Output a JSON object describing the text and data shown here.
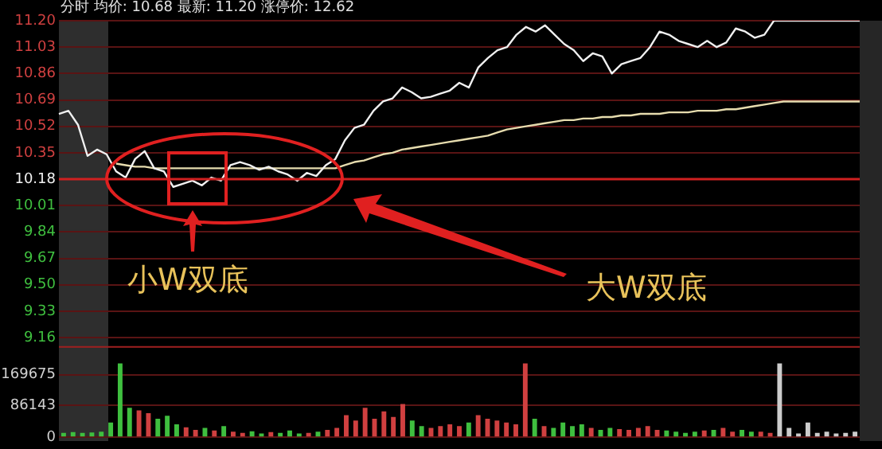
{
  "chart_data": [
    {
      "type": "line",
      "title": "分时 均价: 10.68 最新: 11.20 涨停价: 12.62",
      "categories": [
        null,
        null,
        null,
        null,
        null,
        null,
        null,
        null,
        null,
        null,
        null,
        null,
        null,
        null,
        null,
        null,
        null,
        null,
        null,
        null,
        null,
        null,
        null,
        null,
        null,
        null,
        null,
        null,
        null,
        null,
        null,
        null,
        null,
        null,
        null,
        null,
        null,
        null,
        null,
        null,
        null,
        null,
        null,
        null,
        null,
        null,
        null,
        null,
        null,
        null,
        null,
        null,
        null,
        null,
        null,
        null,
        null,
        null,
        null,
        null,
        null,
        null,
        null,
        null,
        null,
        null,
        null,
        null,
        null,
        null,
        null,
        null,
        null,
        null,
        null,
        null,
        null,
        null,
        null,
        null,
        null,
        null,
        null,
        null,
        null
      ],
      "series": [
        {
          "color": "#f0f0f0",
          "values": [
            10.6,
            10.62,
            10.53,
            10.33,
            10.37,
            10.34,
            10.23,
            10.19,
            10.31,
            10.36,
            10.25,
            10.23,
            10.13,
            10.15,
            10.17,
            10.14,
            10.19,
            10.17,
            10.27,
            10.29,
            10.27,
            10.24,
            10.26,
            10.23,
            10.21,
            10.17,
            10.22,
            10.2,
            10.27,
            10.31,
            10.43,
            10.51,
            10.53,
            10.62,
            10.68,
            10.7,
            10.77,
            10.74,
            10.7,
            10.71,
            10.73,
            10.75,
            10.8,
            10.77,
            10.9,
            10.96,
            11.01,
            11.03,
            11.11,
            11.16,
            11.13,
            11.17,
            11.11,
            11.05,
            11.01,
            10.94,
            10.99,
            10.97,
            10.86,
            10.92,
            10.94,
            10.96,
            11.03,
            11.13,
            11.11,
            11.07,
            11.05,
            11.03,
            11.07,
            11.03,
            11.06,
            11.15,
            11.13,
            11.09,
            11.11,
            11.2,
            11.2,
            11.2,
            11.2,
            11.2,
            11.2,
            11.2,
            11.2,
            11.2,
            11.2
          ]
        },
        {
          "color": "#e6dcae",
          "values": [
            null,
            null,
            null,
            null,
            null,
            null,
            10.28,
            10.27,
            10.26,
            10.26,
            10.25,
            10.25,
            10.25,
            10.25,
            10.25,
            10.25,
            10.25,
            10.25,
            10.25,
            10.25,
            10.25,
            10.25,
            10.25,
            10.25,
            10.25,
            10.25,
            10.25,
            10.25,
            10.25,
            10.25,
            10.27,
            10.29,
            10.3,
            10.32,
            10.34,
            10.35,
            10.37,
            10.38,
            10.39,
            10.4,
            10.41,
            10.42,
            10.43,
            10.44,
            10.45,
            10.46,
            10.48,
            10.5,
            10.51,
            10.52,
            10.53,
            10.54,
            10.55,
            10.56,
            10.56,
            10.57,
            10.57,
            10.58,
            10.58,
            10.59,
            10.59,
            10.6,
            10.6,
            10.6,
            10.61,
            10.61,
            10.61,
            10.62,
            10.62,
            10.62,
            10.63,
            10.63,
            10.64,
            10.65,
            10.66,
            10.67,
            10.68,
            10.68,
            10.68,
            10.68,
            10.68,
            10.68,
            10.68,
            10.68,
            10.68
          ]
        }
      ],
      "ylim": [
        9.16,
        11.2
      ],
      "yticks": [
        9.16,
        9.33,
        {
          "value": 9.5,
          "label": "9.50"
        },
        9.67,
        9.84,
        10.01,
        10.18,
        10.35,
        10.52,
        10.69,
        10.86,
        11.03,
        {
          "value": 11.2,
          "label": "11.20"
        }
      ],
      "grid": "y",
      "tick_labels": "y",
      "legend": false,
      "marker": "none",
      "ref_lines": [
        {
          "axis": "y",
          "value": 10.18,
          "color": "#d02020"
        }
      ],
      "annotations": [
        "小W双底",
        "大W双底"
      ]
    },
    {
      "type": "bar",
      "categories": [
        null,
        null,
        null,
        null,
        null,
        null,
        null,
        null,
        null,
        null,
        null,
        null,
        null,
        null,
        null,
        null,
        null,
        null,
        null,
        null,
        null,
        null,
        null,
        null,
        null,
        null,
        null,
        null,
        null,
        null,
        null,
        null,
        null,
        null,
        null,
        null,
        null,
        null,
        null,
        null,
        null,
        null,
        null,
        null,
        null,
        null,
        null,
        null,
        null,
        null,
        null,
        null,
        null,
        null,
        null,
        null,
        null,
        null,
        null,
        null,
        null,
        null,
        null,
        null,
        null,
        null,
        null,
        null,
        null,
        null,
        null,
        null,
        null,
        null,
        null,
        null,
        null,
        null,
        null,
        null,
        null,
        null,
        null,
        null,
        null
      ],
      "values": [
        12000,
        14000,
        12000,
        13000,
        15000,
        40000,
        200000,
        80000,
        73000,
        65000,
        50000,
        58000,
        35000,
        27000,
        20000,
        25000,
        18000,
        30000,
        15000,
        12000,
        16000,
        10000,
        14000,
        12000,
        18000,
        10000,
        12000,
        15000,
        20000,
        25000,
        60000,
        45000,
        80000,
        50000,
        70000,
        55000,
        90000,
        45000,
        30000,
        25000,
        30000,
        35000,
        30000,
        40000,
        60000,
        50000,
        45000,
        40000,
        35000,
        200000,
        50000,
        30000,
        25000,
        40000,
        30000,
        35000,
        25000,
        20000,
        25000,
        22000,
        20000,
        25000,
        30000,
        20000,
        18000,
        15000,
        12000,
        15000,
        18000,
        20000,
        25000,
        15000,
        20000,
        15000,
        15000,
        12000,
        200000,
        25000,
        10000,
        40000,
        12000,
        15000,
        10000,
        12000,
        15000
      ],
      "colors": [
        "#3fbf3f",
        "#3fbf3f",
        "#3fbf3f",
        "#3fbf3f",
        "#3fbf3f",
        "#3fbf3f",
        "#3fbf3f",
        "#3fbf3f",
        "#d04040",
        "#d04040",
        "#3fbf3f",
        "#3fbf3f",
        "#3fbf3f",
        "#d04040",
        "#d04040",
        "#3fbf3f",
        "#d04040",
        "#3fbf3f",
        "#d04040",
        "#d04040",
        "#3fbf3f",
        "#3fbf3f",
        "#d04040",
        "#3fbf3f",
        "#3fbf3f",
        "#3fbf3f",
        "#d04040",
        "#3fbf3f",
        "#d04040",
        "#d04040",
        "#d04040",
        "#d04040",
        "#d04040",
        "#d04040",
        "#d04040",
        "#d04040",
        "#d04040",
        "#3fbf3f",
        "#3fbf3f",
        "#d04040",
        "#d04040",
        "#d04040",
        "#d04040",
        "#3fbf3f",
        "#d04040",
        "#d04040",
        "#d04040",
        "#d04040",
        "#d04040",
        "#d04040",
        "#3fbf3f",
        "#d04040",
        "#3fbf3f",
        "#3fbf3f",
        "#3fbf3f",
        "#3fbf3f",
        "#d04040",
        "#3fbf3f",
        "#3fbf3f",
        "#d04040",
        "#d04040",
        "#d04040",
        "#d04040",
        "#d04040",
        "#3fbf3f",
        "#3fbf3f",
        "#3fbf3f",
        "#3fbf3f",
        "#d04040",
        "#3fbf3f",
        "#d04040",
        "#d04040",
        "#3fbf3f",
        "#3fbf3f",
        "#d04040",
        "#d04040",
        "#cccccc",
        "#cccccc",
        "#cccccc",
        "#cccccc",
        "#cccccc",
        "#cccccc",
        "#cccccc",
        "#cccccc",
        "#cccccc"
      ],
      "ylim": [
        0,
        247000
      ],
      "yticks": [
        0,
        86143,
        169675
      ],
      "grid": "y",
      "tick_labels": "y",
      "legend": false
    }
  ]
}
